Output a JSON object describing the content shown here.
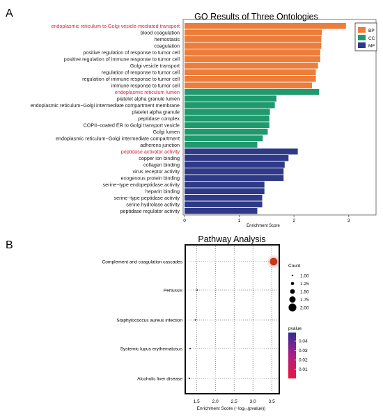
{
  "panel_labels": {
    "a": "A",
    "b": "B"
  },
  "chart_data": [
    {
      "type": "bar",
      "orientation": "horizontal",
      "title": "GO Results of Three Ontologies",
      "xlabel": "Enrichment Score",
      "ylabel": "",
      "xlim": [
        0,
        3.5
      ],
      "xticks": [
        0,
        1,
        2,
        3
      ],
      "legend": {
        "position": "top-right",
        "entries": [
          {
            "name": "BP",
            "color": "#ED7D3A"
          },
          {
            "name": "CC",
            "color": "#1F9A6E"
          },
          {
            "name": "MF",
            "color": "#2E3A87"
          }
        ]
      },
      "highlight_color": "#D7263D",
      "categories": [
        {
          "label": "endoplasmic reticulum to Golgi vesicle-mediated transport",
          "value": 2.95,
          "group": "BP",
          "highlight": true
        },
        {
          "label": "blood coagulation",
          "value": 2.51,
          "group": "BP"
        },
        {
          "label": "hemostasis",
          "value": 2.5,
          "group": "BP"
        },
        {
          "label": "coagulation",
          "value": 2.5,
          "group": "BP"
        },
        {
          "label": "positive regulation of response to tumor cell",
          "value": 2.48,
          "group": "BP"
        },
        {
          "label": "positive regulation of immune response to tumor cell",
          "value": 2.48,
          "group": "BP"
        },
        {
          "label": "Golgi vesicle transport",
          "value": 2.44,
          "group": "BP"
        },
        {
          "label": "regulation of response to tumor cell",
          "value": 2.4,
          "group": "BP"
        },
        {
          "label": "regulation of immune response to tumor cell",
          "value": 2.4,
          "group": "BP"
        },
        {
          "label": "immune response to tumor cell",
          "value": 2.33,
          "group": "BP"
        },
        {
          "label": "endoplasmic reticulum lumen",
          "value": 2.46,
          "group": "CC",
          "highlight": true
        },
        {
          "label": "platelet alpha granule lumen",
          "value": 1.68,
          "group": "CC"
        },
        {
          "label": "endoplasmic reticulum−Golgi intermediate compartment membrane",
          "value": 1.65,
          "group": "CC"
        },
        {
          "label": "platelet alpha granule",
          "value": 1.56,
          "group": "CC"
        },
        {
          "label": "peptidase complex",
          "value": 1.55,
          "group": "CC"
        },
        {
          "label": "COPII−coated ER to Golgi transport vesicle",
          "value": 1.55,
          "group": "CC"
        },
        {
          "label": "Golgi lumen",
          "value": 1.52,
          "group": "CC"
        },
        {
          "label": "endoplasmic reticulum−Golgi intermediate compartment",
          "value": 1.43,
          "group": "CC"
        },
        {
          "label": "adherens junction",
          "value": 1.33,
          "group": "CC"
        },
        {
          "label": "peptidase activator activity",
          "value": 2.07,
          "group": "MF",
          "highlight": true
        },
        {
          "label": "copper ion binding",
          "value": 1.9,
          "group": "MF"
        },
        {
          "label": "collagen binding",
          "value": 1.83,
          "group": "MF"
        },
        {
          "label": "virus receptor activity",
          "value": 1.81,
          "group": "MF"
        },
        {
          "label": "exogenous protein binding",
          "value": 1.81,
          "group": "MF"
        },
        {
          "label": "serine−type endopeptidase activity",
          "value": 1.46,
          "group": "MF"
        },
        {
          "label": "heparin binding",
          "value": 1.46,
          "group": "MF"
        },
        {
          "label": "serine−type peptidase activity",
          "value": 1.42,
          "group": "MF"
        },
        {
          "label": "serine hydrolase activity",
          "value": 1.42,
          "group": "MF"
        },
        {
          "label": "peptidase regulator activity",
          "value": 1.33,
          "group": "MF"
        }
      ]
    },
    {
      "type": "scatter",
      "title": "Pathway Analysis",
      "xlabel": "Enrichment Score (−log₁₀(pvalue))",
      "ylabel": "",
      "xlim": [
        1.2,
        3.7
      ],
      "xticks": [
        1.5,
        2.0,
        2.5,
        3.0,
        3.5
      ],
      "xtick_labels": [
        "1.5",
        "2.0",
        "2.5",
        "3.0",
        "3.5"
      ],
      "grid": true,
      "points": [
        {
          "label": "Complement and coagulation cascades",
          "x": 3.55,
          "count": 2,
          "pvalue": 0.0003,
          "color": "#C43A1A",
          "highlight": true
        },
        {
          "label": "Pertussis",
          "x": 1.52,
          "count": 1,
          "pvalue": 0.03,
          "color": "#9B2C8E"
        },
        {
          "label": "Staphylococcus aureus infection",
          "x": 1.47,
          "count": 1,
          "pvalue": 0.034,
          "color": "#7A3196"
        },
        {
          "label": "Systemic lupus erythematosus",
          "x": 1.33,
          "count": 1,
          "pvalue": 0.047,
          "color": "#3F3F9E"
        },
        {
          "label": "Alcoholic liver disease",
          "x": 1.31,
          "count": 1,
          "pvalue": 0.049,
          "color": "#34409E"
        }
      ],
      "size_legend": {
        "title": "Count",
        "values": [
          1.0,
          1.25,
          1.5,
          1.75,
          2.0
        ],
        "labels": [
          "1.00",
          "1.25",
          "1.50",
          "1.75",
          "2.00"
        ]
      },
      "color_legend": {
        "title": "pvalue",
        "ticks": [
          0.04,
          0.03,
          0.02,
          0.01
        ],
        "labels": [
          "0.04",
          "0.03",
          "0.02",
          "0.01"
        ],
        "low_color": "#E8173A",
        "high_color": "#2E2E96"
      }
    }
  ]
}
